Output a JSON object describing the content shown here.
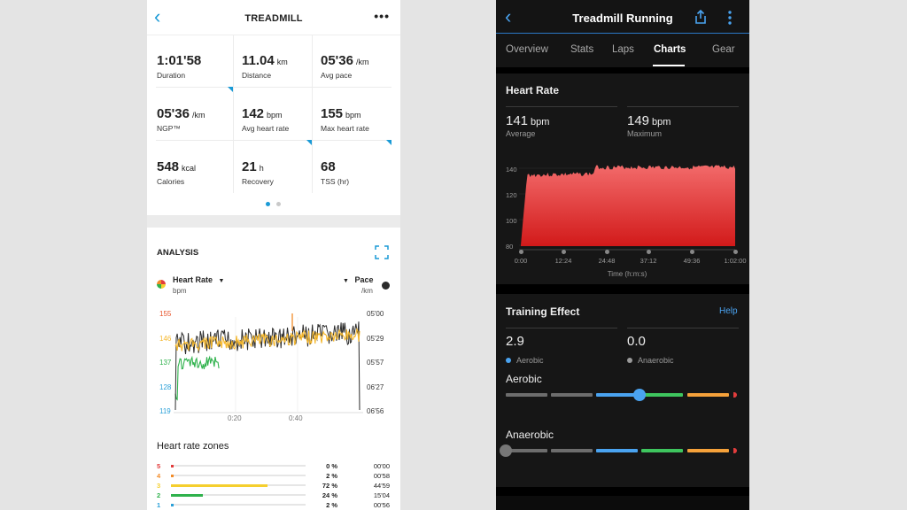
{
  "left": {
    "header": {
      "back_icon": "chevron-left",
      "title": "TREADMILL",
      "more_icon": "more-horizontal"
    },
    "stats": [
      {
        "value": "1:01'58",
        "unit": "",
        "label": "Duration"
      },
      {
        "value": "11.04",
        "unit": "km",
        "label": "Distance"
      },
      {
        "value": "05'36",
        "unit": "/km",
        "label": "Avg pace"
      },
      {
        "value": "05'36",
        "unit": "/km",
        "label": "NGP™"
      },
      {
        "value": "142",
        "unit": "bpm",
        "label": "Avg heart rate"
      },
      {
        "value": "155",
        "unit": "bpm",
        "label": "Max heart rate"
      },
      {
        "value": "548",
        "unit": "kcal",
        "label": "Calories"
      },
      {
        "value": "21",
        "unit": "h",
        "label": "Recovery"
      },
      {
        "value": "68",
        "unit": "",
        "label": "TSS (hr)"
      }
    ],
    "analysis": {
      "title": "ANALYSIS",
      "expand_icon": "expand-icon",
      "left_metric": "Heart Rate",
      "left_unit": "bpm",
      "right_metric": "Pace",
      "right_unit": "/km",
      "left_ticks": [
        "155",
        "146",
        "137",
        "128",
        "119"
      ],
      "left_tick_colors": [
        "#e8542a",
        "#f5b82e",
        "#2fb24c",
        "#2aa0d8",
        "#2aa0d8"
      ],
      "right_ticks": [
        "05'00",
        "05'29",
        "05'57",
        "06'27",
        "06'56"
      ],
      "x_ticks": [
        "0:20",
        "0:40"
      ]
    },
    "zones": {
      "title": "Heart rate zones",
      "rows": [
        {
          "zone": "5",
          "color": "#e23c3c",
          "percent": "0 %",
          "fraction": 0.0,
          "time": "00'00"
        },
        {
          "zone": "4",
          "color": "#f28c28",
          "percent": "2 %",
          "fraction": 0.02,
          "time": "00'58"
        },
        {
          "zone": "3",
          "color": "#f5cf2e",
          "percent": "72 %",
          "fraction": 0.72,
          "time": "44'59"
        },
        {
          "zone": "2",
          "color": "#2fb24c",
          "percent": "24 %",
          "fraction": 0.24,
          "time": "15'04"
        },
        {
          "zone": "1",
          "color": "#2aa0d8",
          "percent": "2 %",
          "fraction": 0.02,
          "time": "00'56"
        }
      ]
    }
  },
  "right": {
    "header": {
      "back_icon": "chevron-left",
      "title": "Treadmill Running",
      "share_icon": "share-icon",
      "more_icon": "more-vertical"
    },
    "tabs": [
      "Overview",
      "Stats",
      "Laps",
      "Charts",
      "Gear"
    ],
    "active_tab": "Charts",
    "heart_rate": {
      "title": "Heart Rate",
      "average_value": "141",
      "average_unit": "bpm",
      "average_label": "Average",
      "maximum_value": "149",
      "maximum_unit": "bpm",
      "maximum_label": "Maximum",
      "y_ticks": [
        "140",
        "120",
        "100",
        "80"
      ],
      "x_ticks": [
        "0:00",
        "12:24",
        "24:48",
        "37:12",
        "49:36",
        "1:02:00"
      ],
      "x_label": "Time (h:m:s)"
    },
    "training_effect": {
      "title": "Training Effect",
      "help": "Help",
      "aerobic_value": "2.9",
      "aerobic_label": "Aerobic",
      "anaerobic_value": "0.0",
      "anaerobic_label": "Anaerobic",
      "aerobic_scale_label": "Aerobic",
      "anaerobic_scale_label": "Anaerobic",
      "aerobic_level": 2.9,
      "anaerobic_level": 0.0
    }
  }
}
